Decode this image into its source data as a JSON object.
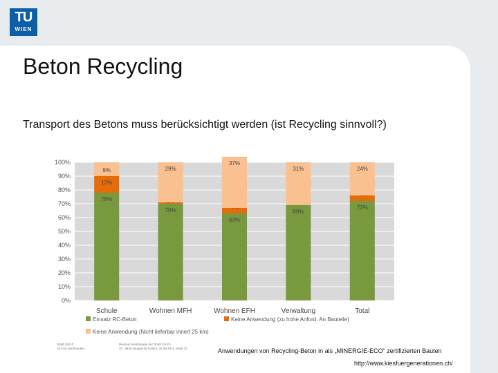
{
  "logo": {
    "mark": "TU",
    "sub": "WIEN"
  },
  "slide": {
    "title": "Beton Recycling",
    "subtitle": "Transport des Betons muss berücksichtigt werden (ist Recycling sinnvoll?)",
    "caption": "Anwendungen von Recycling-Beton in als „MINERGIE-ECO“ zertifizierten Bauten",
    "url": "http://www.kiesfuergenerationen.ch/",
    "source_left": [
      "Stadt Zürich",
      "Amt für Hochbauten"
    ],
    "source_right": [
      "Ressourcenstrategie der Stadt Zürich",
      "20. Jahre Wuppertal Institut, 30.09.2011, Seite 31"
    ]
  },
  "colors": {
    "green": "#78993e",
    "orange": "#e46c0a",
    "peach": "#fac090",
    "plot_bg": "#d9d9d9",
    "accent_blue": "#0b5ea8"
  },
  "chart_data": {
    "type": "bar",
    "stacked": true,
    "grid": true,
    "legend_position": "bottom",
    "ylim": [
      0,
      100
    ],
    "y_ticks": [
      "0%",
      "10%",
      "20%",
      "30%",
      "40%",
      "50%",
      "60%",
      "70%",
      "80%",
      "90%",
      "100%"
    ],
    "categories": [
      "Schule",
      "Wohnen MFH",
      "Wohnen EFH",
      "Verwaltung",
      "Total"
    ],
    "series": [
      {
        "name": "Einsatz RC-Beton",
        "color": "#78993e",
        "values": [
          78,
          70,
          63,
          69,
          72
        ],
        "labels": [
          "78%",
          "70%",
          "63%",
          "69%",
          "72%"
        ]
      },
      {
        "name": "Keine Anwendung (zu hohe Anford. An Bauteile)",
        "color": "#e46c0a",
        "values": [
          12,
          1,
          4,
          0,
          4
        ],
        "labels": [
          "12%",
          "1%",
          "4%",
          "",
          "4%"
        ]
      },
      {
        "name": "Keine Anwendung (Nicht lieferbar innert 25 km)",
        "color": "#fac090",
        "values": [
          9,
          29,
          37,
          31,
          24
        ],
        "labels": [
          "9%",
          "29%",
          "37%",
          "31%",
          "24%"
        ]
      }
    ]
  }
}
